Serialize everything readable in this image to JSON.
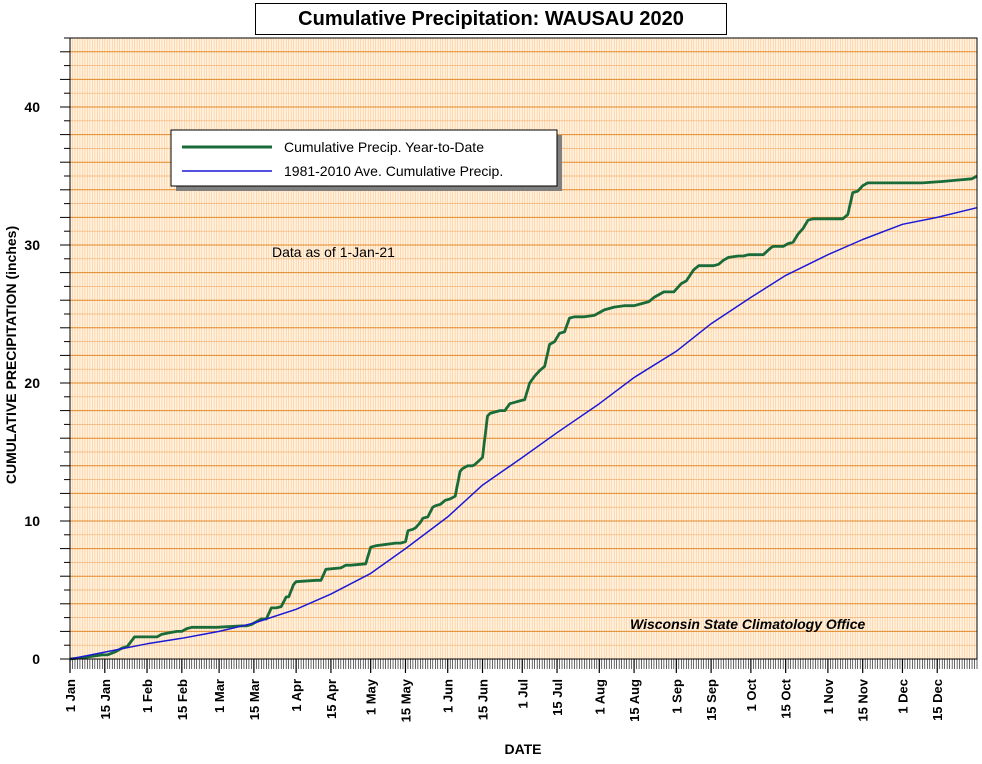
{
  "chart_data": {
    "type": "line",
    "title": "Cumulative Precipitation: WAUSAU 2020",
    "xlabel": "DATE",
    "ylabel": "CUMULATIVE PRECIPITATION (inches)",
    "ylim": [
      0,
      45
    ],
    "y_ticks": [
      0,
      10,
      20,
      30,
      40
    ],
    "x_tick_labels": [
      "1 Jan",
      "15 Jan",
      "1 Feb",
      "15 Feb",
      "1 Mar",
      "15 Mar",
      "1 Apr",
      "15 Apr",
      "1 May",
      "15 May",
      "1 Jun",
      "15 Jun",
      "1 Jul",
      "15 Jul",
      "1 Aug",
      "15 Aug",
      "1 Sep",
      "15 Sep",
      "1 Oct",
      "15 Oct",
      "1 Nov",
      "15 Nov",
      "1 Dec",
      "15 Dec"
    ],
    "x_tick_day_of_year": [
      1,
      15,
      32,
      46,
      61,
      75,
      92,
      106,
      122,
      136,
      153,
      167,
      183,
      197,
      214,
      228,
      245,
      259,
      275,
      289,
      306,
      320,
      336,
      350
    ],
    "xlim_day_of_year": [
      1,
      366
    ],
    "grid": true,
    "legend_position": "top-left",
    "annotations": [
      "Data as of 1-Jan-21",
      "Wisconsin State Climatology Office"
    ],
    "series": [
      {
        "name": "Cumulative Precip. Year-to-Date",
        "color": "#1a6b3a",
        "day_of_year": [
          1,
          6,
          10,
          14,
          16,
          19,
          22,
          24,
          27,
          36,
          38,
          41,
          44,
          46,
          48,
          50,
          60,
          70,
          72,
          74,
          78,
          80,
          82,
          84,
          86,
          88,
          89,
          91,
          92,
          100,
          102,
          104,
          110,
          112,
          114,
          120,
          122,
          124,
          132,
          134,
          136,
          137,
          139,
          140,
          142,
          143,
          145,
          147,
          148,
          150,
          152,
          154,
          156,
          158,
          159,
          161,
          163,
          164,
          167,
          169,
          170,
          172,
          174,
          176,
          178,
          180,
          182,
          184,
          186,
          188,
          190,
          192,
          194,
          196,
          198,
          200,
          202,
          204,
          208,
          212,
          216,
          220,
          224,
          228,
          232,
          234,
          236,
          240,
          244,
          247,
          249,
          252,
          254,
          256,
          260,
          262,
          264,
          266,
          270,
          272,
          274,
          280,
          283,
          284,
          288,
          290,
          292,
          294,
          296,
          298,
          300,
          312,
          314,
          316,
          318,
          320,
          322,
          324,
          336,
          344,
          352,
          358,
          364,
          366
        ],
        "values": [
          0.0,
          0.1,
          0.2,
          0.3,
          0.3,
          0.5,
          0.8,
          0.9,
          1.6,
          1.6,
          1.8,
          1.9,
          2.0,
          2.0,
          2.2,
          2.3,
          2.3,
          2.4,
          2.4,
          2.5,
          2.9,
          2.9,
          3.7,
          3.7,
          3.8,
          4.5,
          4.5,
          5.4,
          5.6,
          5.7,
          5.7,
          6.5,
          6.6,
          6.8,
          6.8,
          6.9,
          8.1,
          8.2,
          8.4,
          8.4,
          8.5,
          9.3,
          9.4,
          9.5,
          9.9,
          10.2,
          10.3,
          11.0,
          11.1,
          11.2,
          11.5,
          11.6,
          11.8,
          13.6,
          13.8,
          14.0,
          14.0,
          14.1,
          14.6,
          17.6,
          17.8,
          17.9,
          18.0,
          18.0,
          18.5,
          18.6,
          18.7,
          18.8,
          20.0,
          20.5,
          20.9,
          21.2,
          22.8,
          23.0,
          23.6,
          23.7,
          24.7,
          24.8,
          24.8,
          24.9,
          25.3,
          25.5,
          25.6,
          25.6,
          25.8,
          25.9,
          26.2,
          26.6,
          26.6,
          27.2,
          27.4,
          28.2,
          28.5,
          28.5,
          28.5,
          28.6,
          28.9,
          29.1,
          29.2,
          29.2,
          29.3,
          29.3,
          29.8,
          29.9,
          29.9,
          30.1,
          30.2,
          30.8,
          31.2,
          31.8,
          31.9,
          31.9,
          32.2,
          33.8,
          33.9,
          34.3,
          34.5,
          34.5,
          34.5,
          34.5,
          34.6,
          34.7,
          34.8,
          35.0
        ]
      },
      {
        "name": "1981-2010 Ave. Cumulative Precip.",
        "color": "#1a1ad6",
        "day_of_year": [
          1,
          15,
          32,
          46,
          61,
          75,
          92,
          106,
          122,
          136,
          153,
          167,
          183,
          197,
          214,
          228,
          245,
          259,
          275,
          289,
          306,
          320,
          336,
          350,
          366
        ],
        "values": [
          0.0,
          0.5,
          1.1,
          1.5,
          2.0,
          2.6,
          3.6,
          4.7,
          6.2,
          8.0,
          10.3,
          12.6,
          14.6,
          16.4,
          18.5,
          20.4,
          22.3,
          24.3,
          26.2,
          27.8,
          29.3,
          30.4,
          31.5,
          32.0,
          32.7
        ]
      }
    ]
  }
}
